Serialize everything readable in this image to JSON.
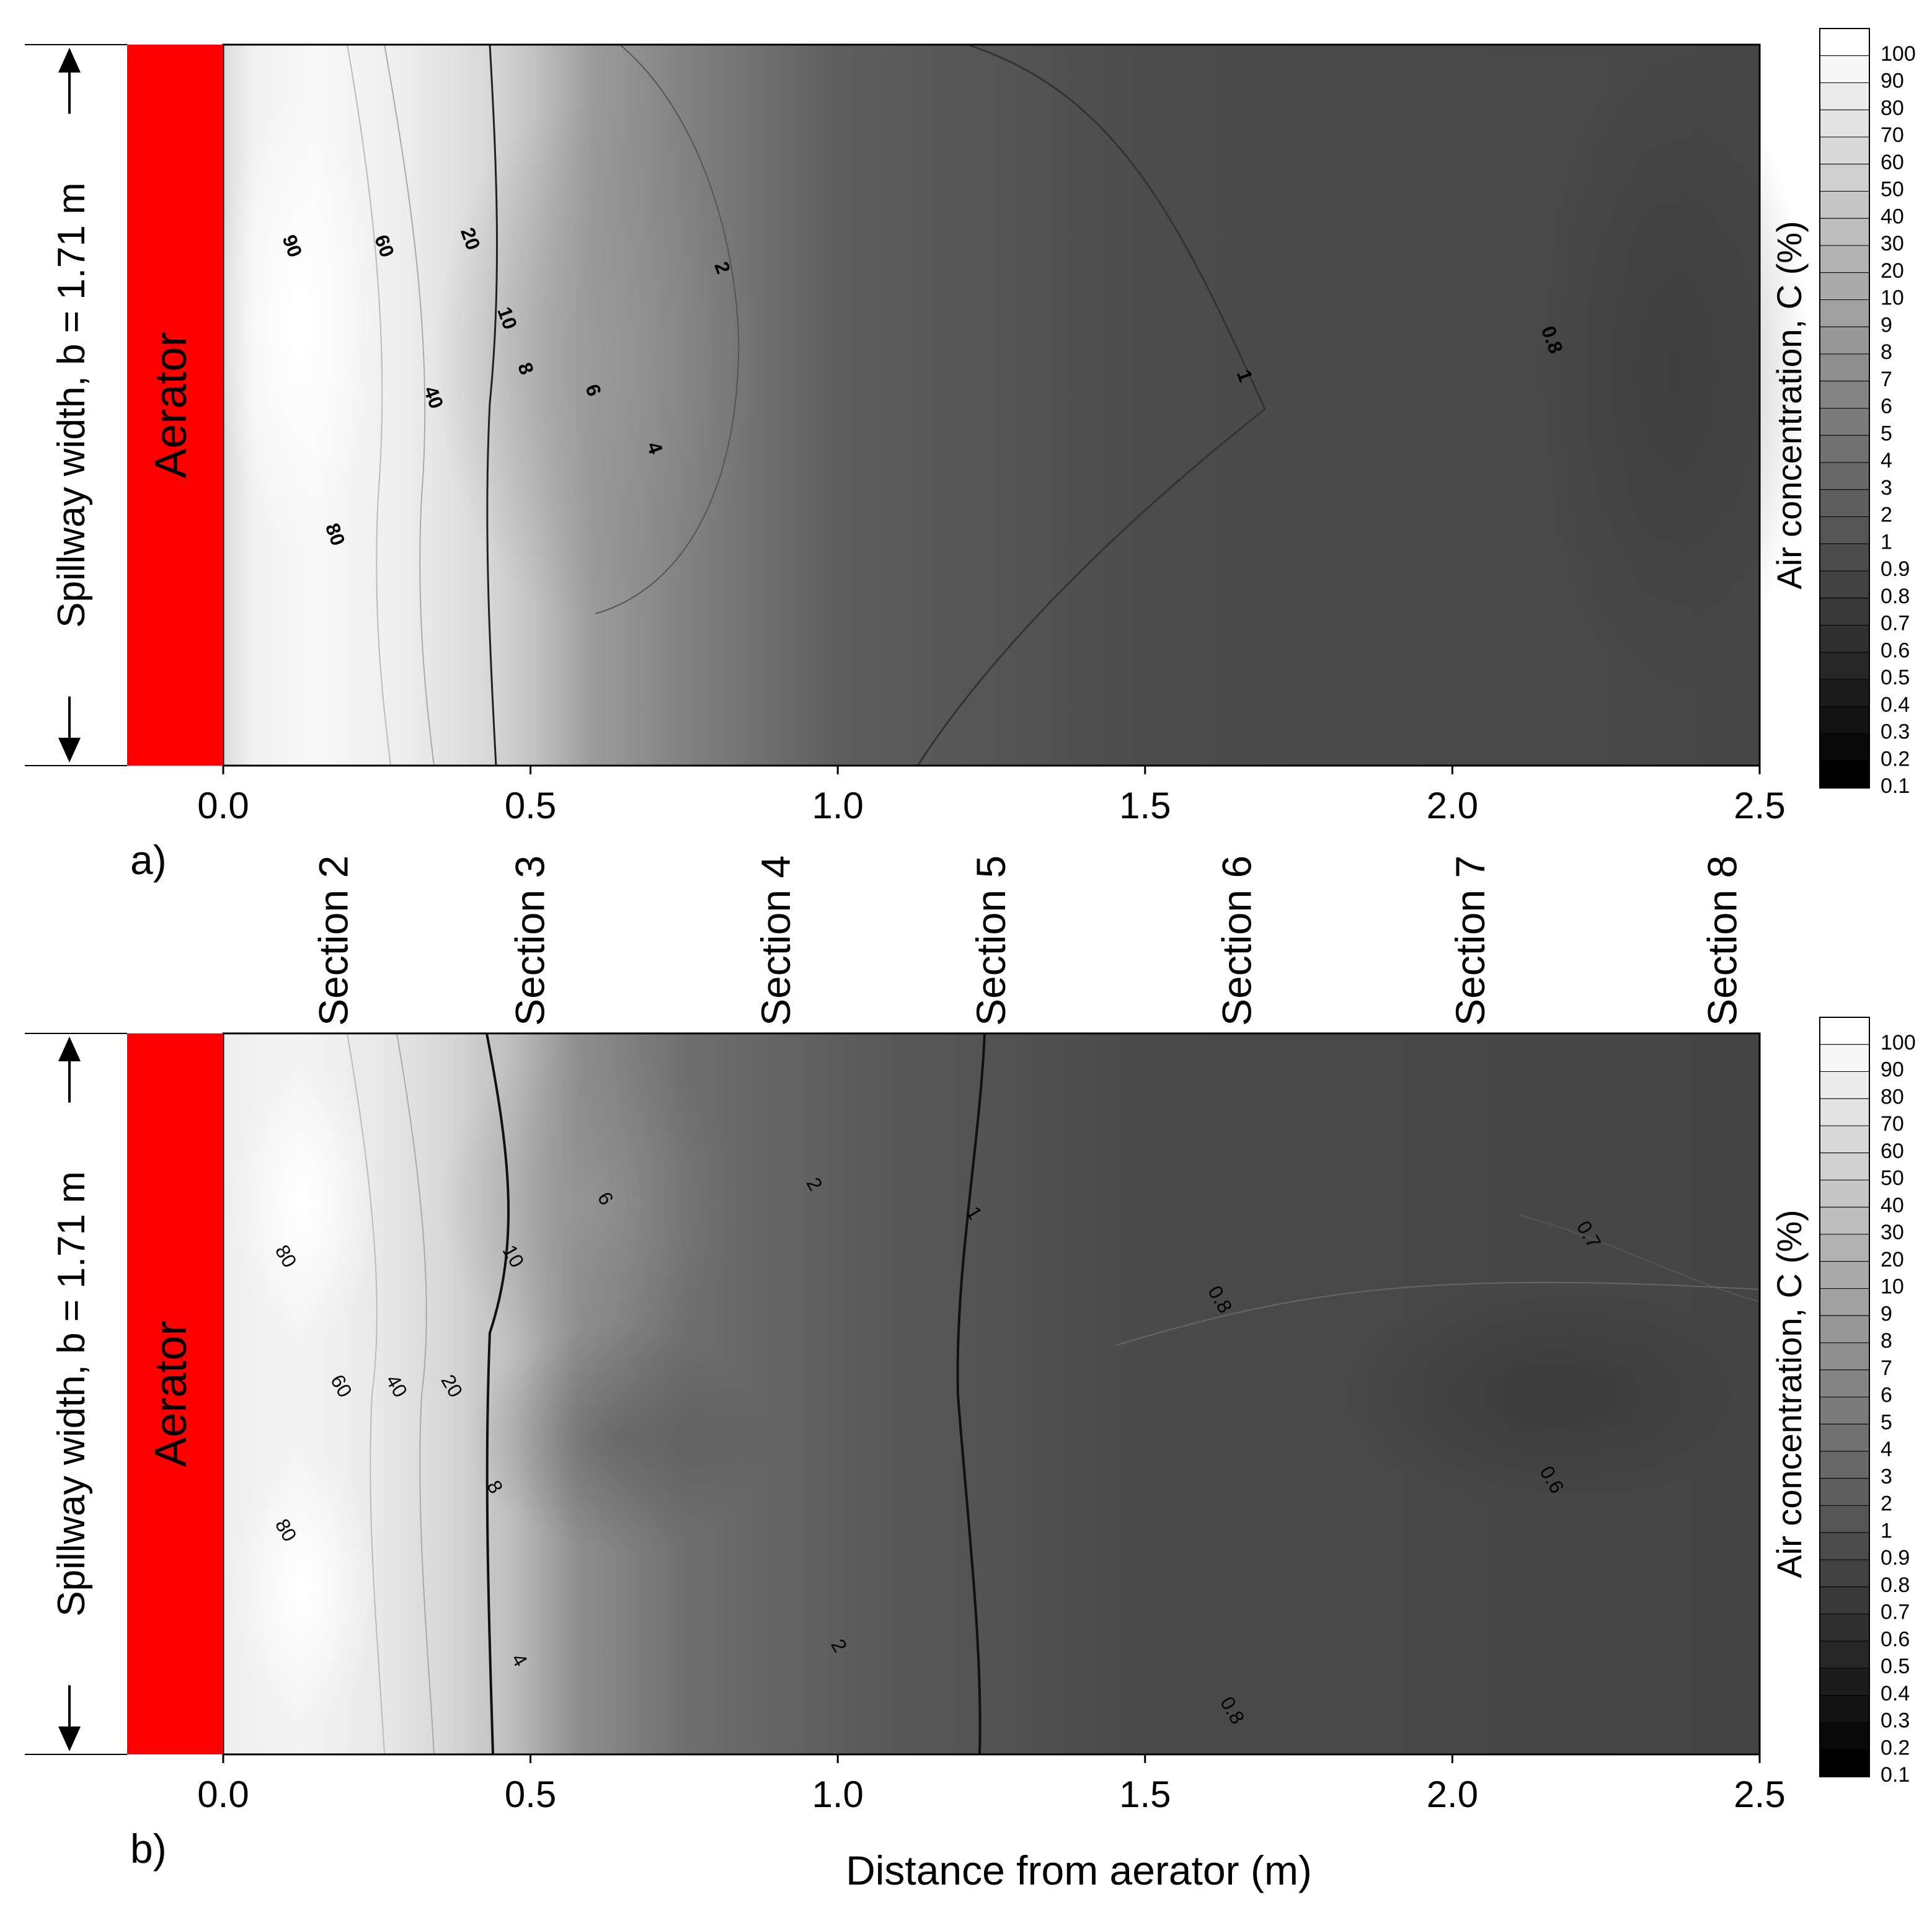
{
  "figure": {
    "sections": [
      "Section 2",
      "Section 3",
      "Section 4",
      "Section 5",
      "Section 6",
      "Section 7",
      "Section 8"
    ],
    "section_x": [
      0.18,
      0.5,
      0.9,
      1.25,
      1.65,
      2.03,
      2.44
    ],
    "width_label": "Spillway width, b = 1.71 m",
    "aerator_label": "Aerator",
    "aerator_color": "#ff0000",
    "xlabel": "Distance from aerator (m)"
  },
  "colorbar": {
    "label": "Air concentration, C (%)",
    "levels": [
      "100",
      "90",
      "80",
      "70",
      "60",
      "50",
      "40",
      "30",
      "20",
      "10",
      "9",
      "8",
      "7",
      "6",
      "5",
      "4",
      "3",
      "2",
      "1",
      "0.9",
      "0.8",
      "0.7",
      "0.6",
      "0.5",
      "0.4",
      "0.3",
      "0.2",
      "0.1"
    ]
  },
  "chart_data": [
    {
      "type": "heatmap",
      "panel_label": "a)",
      "xlabel": "",
      "ylabel": "Spillway width, b = 1.71 m",
      "xlim": [
        0,
        2.5
      ],
      "x_ticks": [
        "0.0",
        "0.5",
        "1.0",
        "1.5",
        "2.0",
        "2.5"
      ],
      "contour_labels": [
        {
          "text": "90",
          "x": 0.11,
          "y": 0.72
        },
        {
          "text": "60",
          "x": 0.26,
          "y": 0.72
        },
        {
          "text": "20",
          "x": 0.4,
          "y": 0.73
        },
        {
          "text": "10",
          "x": 0.46,
          "y": 0.62
        },
        {
          "text": "8",
          "x": 0.49,
          "y": 0.55
        },
        {
          "text": "40",
          "x": 0.34,
          "y": 0.51
        },
        {
          "text": "6",
          "x": 0.6,
          "y": 0.52
        },
        {
          "text": "4",
          "x": 0.7,
          "y": 0.44
        },
        {
          "text": "80",
          "x": 0.18,
          "y": 0.32
        },
        {
          "text": "2",
          "x": 0.81,
          "y": 0.69
        },
        {
          "text": "1",
          "x": 1.66,
          "y": 0.54
        },
        {
          "text": "0.8",
          "x": 2.16,
          "y": 0.59
        }
      ],
      "colorbar_label": "Air concentration, C (%)"
    },
    {
      "type": "heatmap",
      "panel_label": "b)",
      "xlabel": "Distance from aerator (m)",
      "ylabel": "Spillway width, b = 1.71 m",
      "xlim": [
        0,
        2.5
      ],
      "x_ticks": [
        "0.0",
        "0.5",
        "1.0",
        "1.5",
        "2.0",
        "2.5"
      ],
      "contour_labels": [
        {
          "text": "80",
          "x": 0.1,
          "y": 0.69
        },
        {
          "text": "80",
          "x": 0.1,
          "y": 0.31
        },
        {
          "text": "60",
          "x": 0.19,
          "y": 0.51
        },
        {
          "text": "40",
          "x": 0.28,
          "y": 0.51
        },
        {
          "text": "20",
          "x": 0.37,
          "y": 0.51
        },
        {
          "text": "10",
          "x": 0.47,
          "y": 0.69
        },
        {
          "text": "8",
          "x": 0.44,
          "y": 0.37
        },
        {
          "text": "4",
          "x": 0.48,
          "y": 0.13
        },
        {
          "text": "6",
          "x": 0.62,
          "y": 0.77
        },
        {
          "text": "2",
          "x": 0.96,
          "y": 0.79
        },
        {
          "text": "2",
          "x": 1.0,
          "y": 0.15
        },
        {
          "text": "1",
          "x": 1.22,
          "y": 0.75
        },
        {
          "text": "0.8",
          "x": 1.62,
          "y": 0.63
        },
        {
          "text": "0.7",
          "x": 2.22,
          "y": 0.72
        },
        {
          "text": "0.6",
          "x": 2.16,
          "y": 0.38
        },
        {
          "text": "0.8",
          "x": 1.64,
          "y": 0.06
        }
      ],
      "colorbar_label": "Air concentration, C (%)"
    }
  ]
}
